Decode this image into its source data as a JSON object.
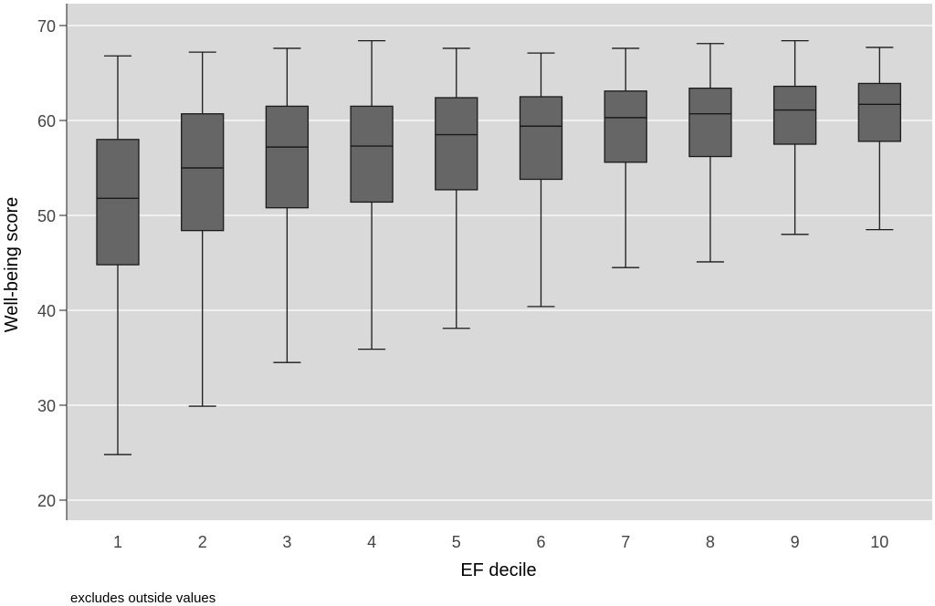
{
  "chart_data": {
    "type": "box",
    "xlabel": "EF decile",
    "ylabel": "Well-being score",
    "note": "excludes outside values",
    "ylim": [
      20,
      70
    ],
    "yticks": [
      20,
      30,
      40,
      50,
      60,
      70
    ],
    "grid": true,
    "colors": {
      "plot_background": "#d9d9d9",
      "grid": "#ffffff",
      "box_fill": "#666666",
      "box_stroke": "#1a1a1a"
    },
    "categories": [
      "1",
      "2",
      "3",
      "4",
      "5",
      "6",
      "7",
      "8",
      "9",
      "10"
    ],
    "boxes": [
      {
        "category": "1",
        "whisker_low": 24.8,
        "q1": 44.8,
        "median": 51.8,
        "q3": 58.0,
        "whisker_high": 66.8
      },
      {
        "category": "2",
        "whisker_low": 29.9,
        "q1": 48.4,
        "median": 55.0,
        "q3": 60.7,
        "whisker_high": 67.2
      },
      {
        "category": "3",
        "whisker_low": 34.5,
        "q1": 50.8,
        "median": 57.2,
        "q3": 61.5,
        "whisker_high": 67.6
      },
      {
        "category": "4",
        "whisker_low": 35.9,
        "q1": 51.4,
        "median": 57.3,
        "q3": 61.5,
        "whisker_high": 68.4
      },
      {
        "category": "5",
        "whisker_low": 38.1,
        "q1": 52.7,
        "median": 58.5,
        "q3": 62.4,
        "whisker_high": 67.6
      },
      {
        "category": "6",
        "whisker_low": 40.4,
        "q1": 53.8,
        "median": 59.4,
        "q3": 62.5,
        "whisker_high": 67.1
      },
      {
        "category": "7",
        "whisker_low": 44.5,
        "q1": 55.6,
        "median": 60.3,
        "q3": 63.1,
        "whisker_high": 67.6
      },
      {
        "category": "8",
        "whisker_low": 45.1,
        "q1": 56.2,
        "median": 60.7,
        "q3": 63.4,
        "whisker_high": 68.1
      },
      {
        "category": "9",
        "whisker_low": 48.0,
        "q1": 57.5,
        "median": 61.1,
        "q3": 63.6,
        "whisker_high": 68.4
      },
      {
        "category": "10",
        "whisker_low": 48.5,
        "q1": 57.8,
        "median": 61.7,
        "q3": 63.9,
        "whisker_high": 67.7
      }
    ]
  }
}
